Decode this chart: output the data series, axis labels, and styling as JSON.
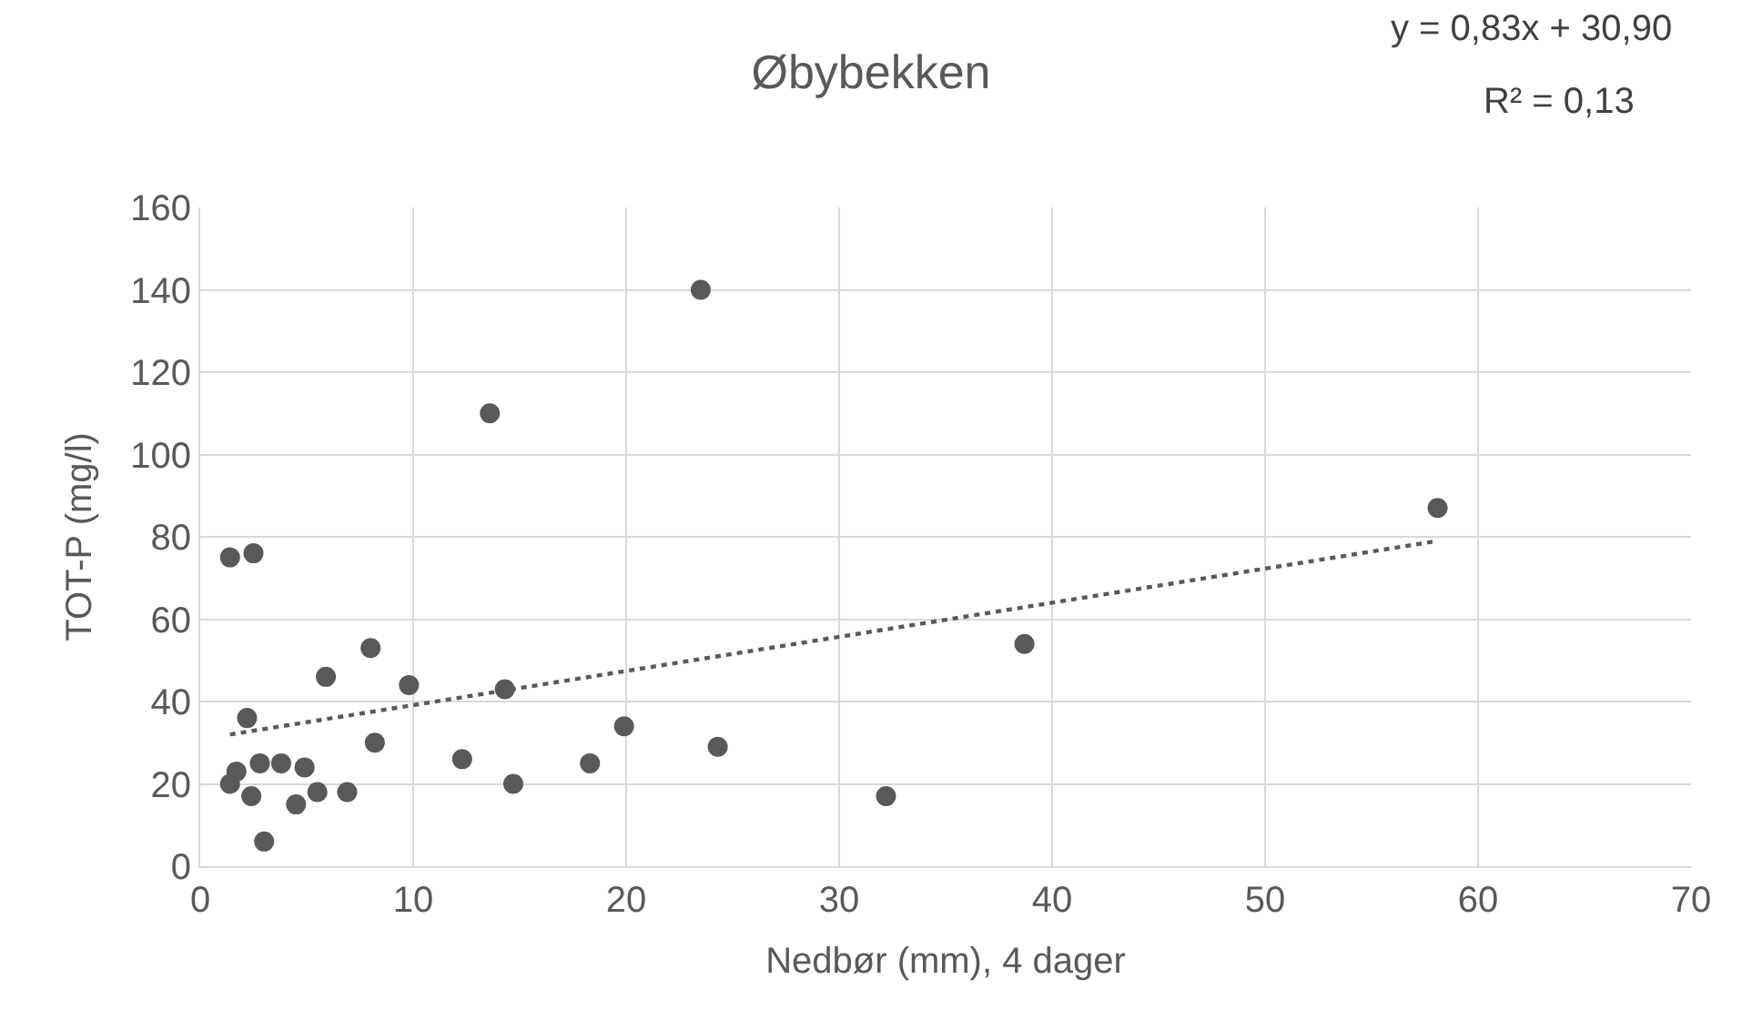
{
  "chart_data": {
    "type": "scatter",
    "title": "Øbybekken",
    "xlabel": "Nedbør (mm), 4 dager",
    "ylabel": "TOT-P (mg/l)",
    "annotations": [
      "y = 0,83x + 30,90",
      "R² = 0,13"
    ],
    "series": [
      {
        "color": "#595959",
        "marker": "circle",
        "x": [
          1.4,
          1.7,
          2.4,
          2.8,
          3.8,
          4.9,
          5.5,
          4.5,
          6.9,
          3.0,
          8.2,
          12.3,
          14.7,
          18.3,
          19.9,
          24.3,
          14.3,
          9.8,
          8.0,
          5.9,
          2.2,
          1.4,
          2.5,
          13.6,
          23.5,
          32.2,
          38.7,
          58.1
        ],
        "values": [
          20,
          23,
          17,
          25,
          25,
          24,
          18,
          15,
          18,
          6,
          30,
          26,
          20,
          25,
          34,
          29,
          43,
          44,
          53,
          46,
          36,
          75,
          76,
          110,
          140,
          17,
          54,
          87
        ]
      },
      {
        "type": "line",
        "color": "#595959",
        "line_style": "dotted",
        "marker": "none",
        "x": [
          1.4,
          58.1
        ],
        "values": [
          32,
          79
        ]
      }
    ],
    "xlim": [
      0,
      70
    ],
    "xticks": [
      0,
      10,
      20,
      30,
      40,
      50,
      60,
      70
    ],
    "ylim": [
      0,
      160
    ],
    "yticks": [
      0,
      20,
      40,
      60,
      80,
      100,
      120,
      140,
      160
    ],
    "grid": true
  }
}
